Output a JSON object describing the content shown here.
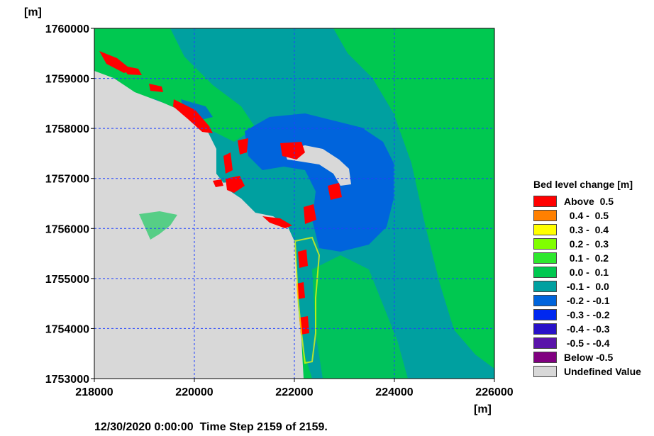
{
  "chart_data": {
    "type": "heatmap",
    "x_unit": "[m]",
    "y_unit": "[m]",
    "xlim": [
      218000,
      226000
    ],
    "ylim": [
      1753000,
      1760000
    ],
    "x_ticks": [
      218000,
      220000,
      222000,
      224000,
      226000
    ],
    "y_ticks": [
      1753000,
      1754000,
      1755000,
      1756000,
      1757000,
      1758000,
      1759000,
      1760000
    ],
    "x_tick_labels": [
      "218000",
      "220000",
      "222000",
      "224000",
      "226000"
    ],
    "y_tick_labels": [
      "1753000",
      "1754000",
      "1755000",
      "1756000",
      "1757000",
      "1758000",
      "1759000",
      "1760000"
    ],
    "grid": true,
    "legend_title": "Bed level change [m]",
    "legend_position": "right",
    "legend": [
      {
        "label": "Above  0.5",
        "color": "#ff0000"
      },
      {
        "label": "  0.4 -  0.5",
        "color": "#ff8000"
      },
      {
        "label": "  0.3 -  0.4",
        "color": "#ffff00"
      },
      {
        "label": "  0.2 -  0.3",
        "color": "#80ff00"
      },
      {
        "label": "  0.1 -  0.2",
        "color": "#2ee82e"
      },
      {
        "label": "  0.0 -  0.1",
        "color": "#00c850"
      },
      {
        "label": " -0.1 -  0.0",
        "color": "#00a0a0"
      },
      {
        "label": " -0.2 - -0.1",
        "color": "#0064dc"
      },
      {
        "label": " -0.3 - -0.2",
        "color": "#0028f0"
      },
      {
        "label": " -0.4 - -0.3",
        "color": "#2812c8"
      },
      {
        "label": " -0.5 - -0.4",
        "color": "#5a14aa"
      },
      {
        "label": "Below -0.5",
        "color": "#800080"
      },
      {
        "label": "Undefined Value",
        "color": "#d8d8d8"
      }
    ]
  },
  "footer": {
    "timestamp": "12/30/2020 0:00:00",
    "step": "Time Step 2159 of 2159."
  },
  "colors": {
    "grid": "#2040ff",
    "background": "#ffffff"
  }
}
